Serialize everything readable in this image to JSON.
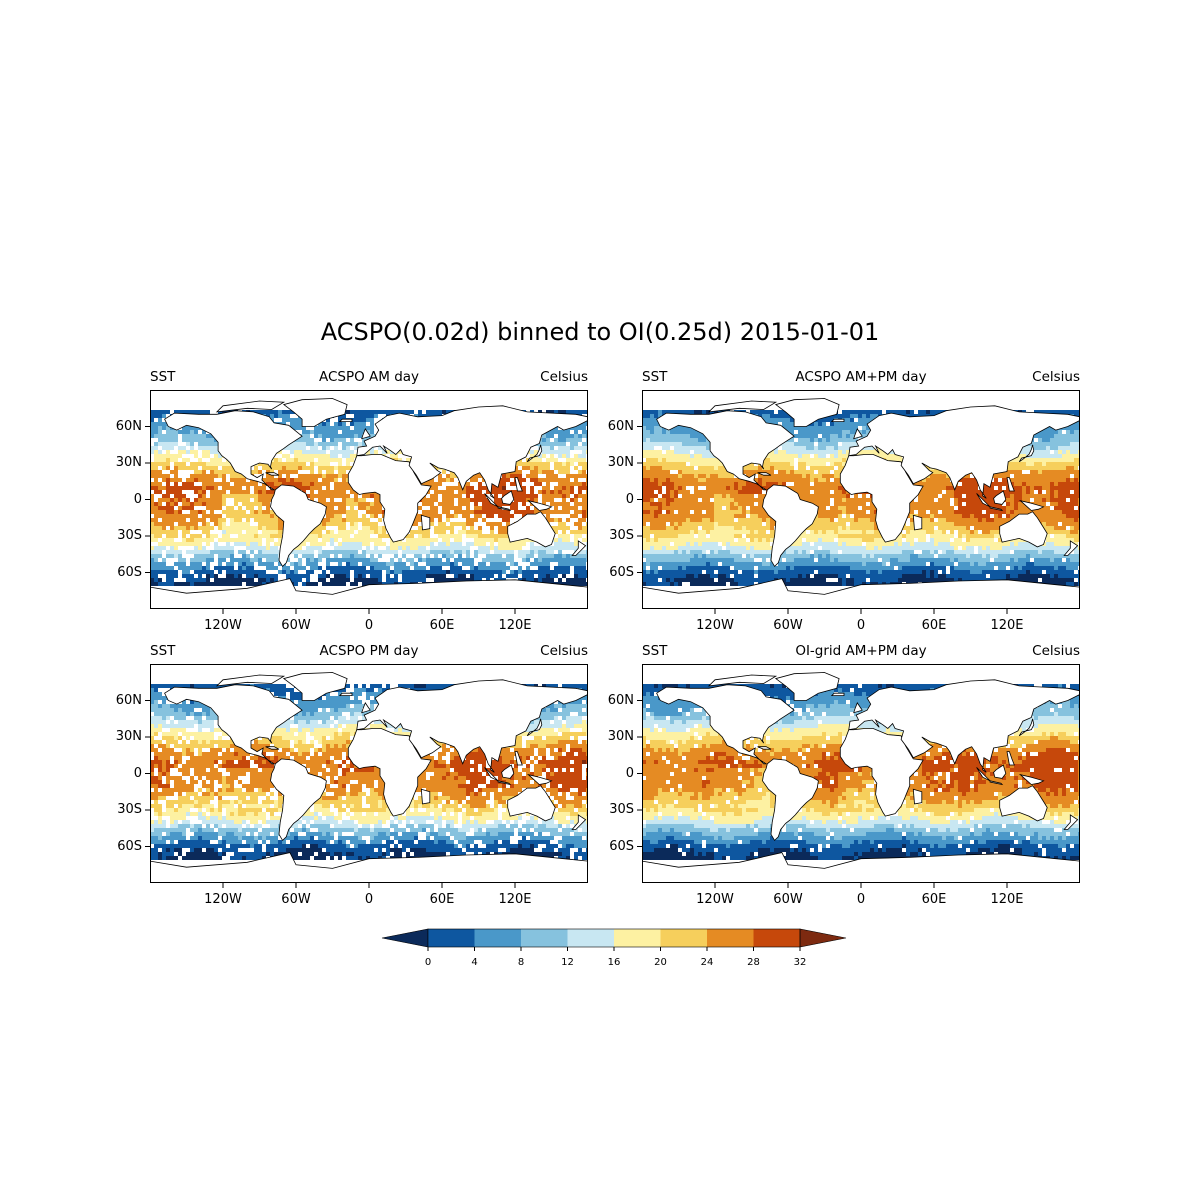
{
  "figure": {
    "title": "ACSPO(0.02d) binned to OI(0.25d) 2015-01-01"
  },
  "panels": [
    {
      "left_label": "SST",
      "center_label": "ACSPO AM day",
      "right_label": "Celsius",
      "coverage": 0.78,
      "seed": 11
    },
    {
      "left_label": "SST",
      "center_label": "ACSPO AM+PM day",
      "right_label": "Celsius",
      "coverage": 0.93,
      "seed": 23
    },
    {
      "left_label": "SST",
      "center_label": "ACSPO PM day",
      "right_label": "Celsius",
      "coverage": 0.8,
      "seed": 37
    },
    {
      "left_label": "SST",
      "center_label": "OI-grid AM+PM day",
      "right_label": "Celsius",
      "coverage": 0.93,
      "seed": 53
    }
  ],
  "axes": {
    "lat_ticks": [
      "60N",
      "30N",
      "0",
      "30S",
      "60S"
    ],
    "lat_values": [
      60,
      30,
      0,
      -30,
      -60
    ],
    "lon_ticks": [
      "120W",
      "60W",
      "0",
      "60E",
      "120E"
    ],
    "lon_values": [
      -120,
      -60,
      0,
      60,
      120
    ],
    "lon_range": [
      -180,
      180
    ],
    "lat_range": [
      -90,
      90
    ]
  },
  "colorbar": {
    "levels": [
      "0",
      "4",
      "8",
      "12",
      "16",
      "20",
      "24",
      "28",
      "32"
    ],
    "level_values": [
      0,
      4,
      8,
      12,
      16,
      20,
      24,
      28,
      32
    ],
    "colors": [
      "#0e57a0",
      "#4a98c9",
      "#86c2de",
      "#c8e7f2",
      "#fdf1a2",
      "#f6cf5c",
      "#e58b23",
      "#c6480b"
    ],
    "under_color": "#0b2a5a",
    "over_color": "#7d2a10",
    "extend": "both"
  },
  "chart_data": {
    "type": "heatmap",
    "title": "ACSPO(0.02d) binned to OI(0.25d) 2015-01-01",
    "variable": "SST",
    "units": "Celsius",
    "xlim": [
      -180,
      180
    ],
    "ylim": [
      -90,
      90
    ],
    "color_levels": [
      0,
      4,
      8,
      12,
      16,
      20,
      24,
      28,
      32
    ],
    "zonal_sst_profile": {
      "lat": [
        80,
        70,
        60,
        50,
        40,
        30,
        20,
        10,
        0,
        -10,
        -20,
        -30,
        -40,
        -45,
        -50,
        -55,
        -60,
        -65,
        -70
      ],
      "sst": [
        0,
        2,
        6,
        9,
        15,
        20,
        25,
        28,
        27,
        27,
        24,
        20,
        15,
        11,
        8,
        5,
        2,
        0,
        -1
      ]
    }
  }
}
